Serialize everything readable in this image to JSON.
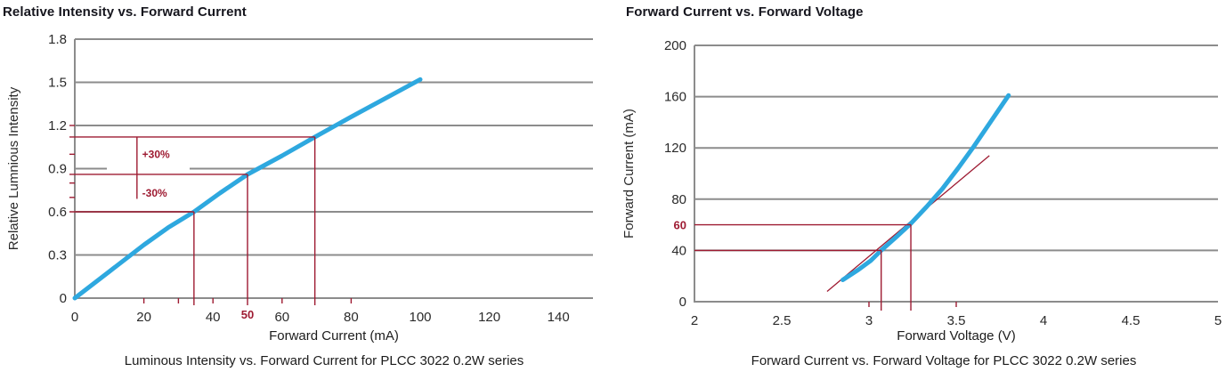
{
  "colors": {
    "curve_blue": "#2EA8DF",
    "annotation_red": "#9E1B32",
    "grid_gray": "#8C8C8C",
    "text_dark": "#2a2a2a",
    "title_dark": "#15151d"
  },
  "chart_data": [
    {
      "id": "relative-intensity-vs-forward-current",
      "type": "line",
      "title": "Relative Intensity vs. Forward Current",
      "xlabel": "Forward Current (mA)",
      "ylabel": "Relative Lumnious Intensity",
      "caption": "Luminous Intensity vs. Forward Current for PLCC 3022 0.2W series",
      "xlim": [
        0,
        150
      ],
      "ylim": [
        0,
        1.8
      ],
      "x_ticks": [
        0,
        20,
        40,
        60,
        80,
        100,
        120,
        140
      ],
      "y_ticks": [
        0,
        0.3,
        0.6,
        0.9,
        1.2,
        1.5,
        1.8
      ],
      "grid": "horizontal",
      "legend": "none",
      "series": [
        {
          "name": "relative-luminous-intensity",
          "points": [
            [
              0,
              0
            ],
            [
              10,
              0.185
            ],
            [
              20,
              0.37
            ],
            [
              27,
              0.49
            ],
            [
              34.5,
              0.6
            ],
            [
              42,
              0.73
            ],
            [
              50,
              0.86
            ],
            [
              60,
              0.99
            ],
            [
              69.5,
              1.12
            ],
            [
              80,
              1.26
            ],
            [
              90,
              1.39
            ],
            [
              100,
              1.52
            ]
          ]
        }
      ],
      "annotations": {
        "ref_points": [
          {
            "x": 34.5,
            "y": 0.6,
            "meaning": "-30% intensity"
          },
          {
            "x": 50,
            "y": 0.86,
            "meaning": "nominal 50 mA"
          },
          {
            "x": 69.5,
            "y": 1.12,
            "meaning": "+30% intensity"
          }
        ],
        "bracket": {
          "x": 18,
          "y1": 0.69,
          "y2": 1.12
        },
        "labels": [
          {
            "text": "+30%",
            "x": 19.5,
            "y": 1.0
          },
          {
            "text": "-30%",
            "x": 19.5,
            "y": 0.73
          }
        ],
        "x_axis_label": {
          "text": "50",
          "x": 50
        },
        "minor_x_ticks": [
          20,
          30,
          40,
          60,
          80
        ],
        "minor_y_ticks": [
          0.7,
          0.8,
          1.0,
          1.2
        ]
      }
    },
    {
      "id": "forward-current-vs-forward-voltage",
      "type": "line",
      "title": "Forward Current vs. Forward Voltage",
      "xlabel": "Forward Voltage (V)",
      "ylabel": "Forward Current (mA)",
      "caption": "Forward Current vs. Forward Voltage for PLCC 3022 0.2W series",
      "xlim": [
        2,
        5
      ],
      "ylim": [
        0,
        200
      ],
      "x_ticks": [
        2,
        2.5,
        3,
        3.5,
        4,
        4.5,
        5
      ],
      "y_ticks": [
        0,
        40,
        80,
        120,
        160,
        200
      ],
      "grid": "horizontal",
      "legend": "none",
      "series": [
        {
          "name": "forward-current",
          "points": [
            [
              2.85,
              17
            ],
            [
              2.94,
              25
            ],
            [
              3.01,
              32
            ],
            [
              3.07,
              40
            ],
            [
              3.16,
              51
            ],
            [
              3.24,
              61
            ],
            [
              3.33,
              74
            ],
            [
              3.42,
              88
            ],
            [
              3.51,
              104
            ],
            [
              3.6,
              121
            ],
            [
              3.7,
              141
            ],
            [
              3.8,
              161
            ]
          ]
        }
      ],
      "tangent": {
        "points": [
          [
            2.76,
            8
          ],
          [
            3.69,
            114
          ]
        ]
      },
      "annotations": {
        "ref_points": [
          {
            "x": 3.07,
            "y": 40,
            "meaning": "40 mA operating point"
          },
          {
            "x": 3.24,
            "y": 60,
            "meaning": "60 mA operating point"
          }
        ],
        "y_axis_label": {
          "text": "60",
          "y": 60
        },
        "minor_x_ticks": [
          3,
          3.5
        ]
      }
    }
  ]
}
